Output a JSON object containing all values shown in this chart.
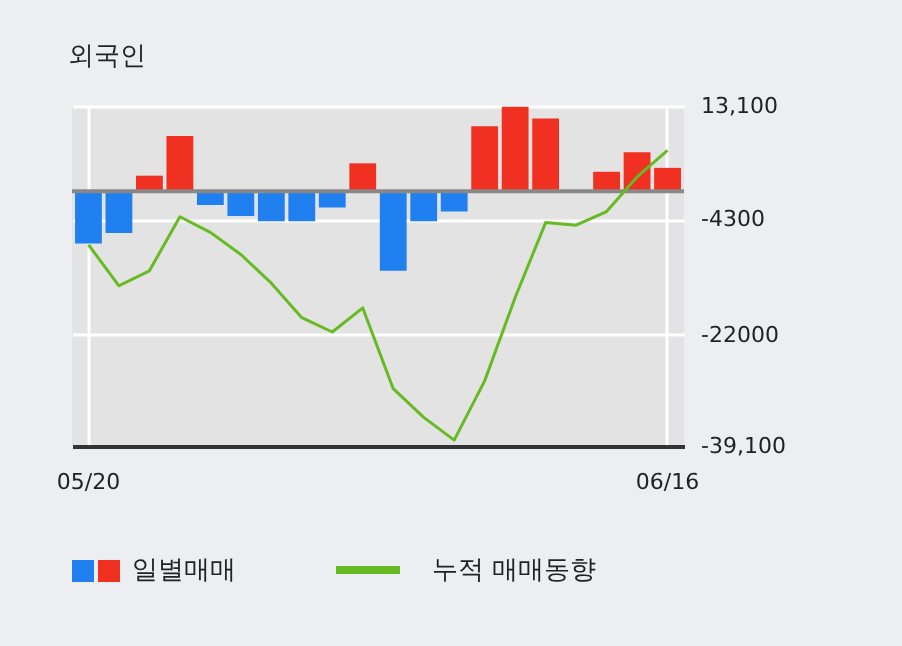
{
  "chart_data": {
    "type": "bar",
    "title": "외국인",
    "categories": [
      "05/20",
      null,
      null,
      null,
      null,
      null,
      null,
      null,
      null,
      null,
      null,
      null,
      null,
      null,
      null,
      null,
      null,
      null,
      null,
      "06/16"
    ],
    "series": [
      {
        "name": "일별매매",
        "colors": [
          "#2080f0",
          "#2080f0",
          "#f03020",
          "#f03020",
          "#2080f0",
          "#2080f0",
          "#2080f0",
          "#2080f0",
          "#2080f0",
          "#f03020",
          "#2080f0",
          "#2080f0",
          "#2080f0",
          "#f03020",
          "#f03020",
          "#f03020",
          "#f03020",
          "#f03020",
          "#f03020",
          "#f03020"
        ],
        "values": [
          -8000,
          -6400,
          2400,
          8500,
          -2100,
          -3800,
          -4600,
          -4600,
          -2500,
          4300,
          -12200,
          -4600,
          -3100,
          10000,
          13000,
          11200,
          0,
          3000,
          6000,
          3600
        ]
      },
      {
        "name": "누적 매매동향",
        "type": "line",
        "color": "#66bb22",
        "values": [
          -8200,
          -14500,
          -12200,
          -3900,
          -6300,
          -9700,
          -14100,
          -19400,
          -21600,
          -17900,
          -30300,
          -34700,
          -38200,
          -29100,
          -16300,
          -4800,
          -5200,
          -3100,
          2200,
          6300
        ]
      }
    ],
    "ylim": [
      -39100,
      13100
    ],
    "yticks": [
      {
        "value": 13100,
        "label": "13,100"
      },
      {
        "value": -4300,
        "label": "-4300"
      },
      {
        "value": -22000,
        "label": "-22000"
      },
      {
        "value": -39100,
        "label": "-39,100"
      }
    ],
    "grid": true,
    "legend": "bottom left"
  }
}
